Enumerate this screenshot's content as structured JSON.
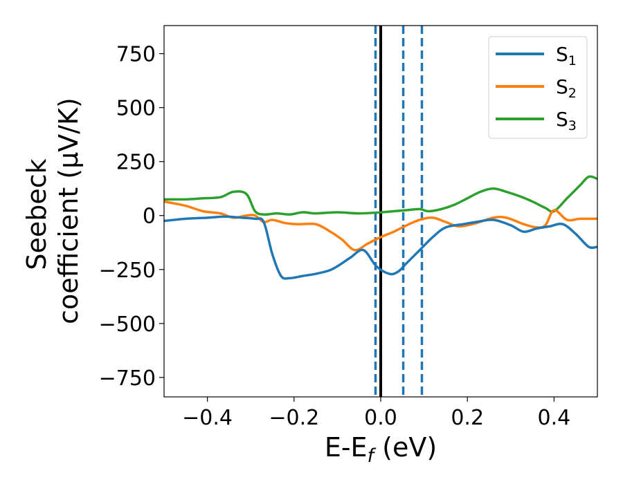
{
  "chart_data": {
    "type": "line",
    "xlabel_main": "E-E",
    "xlabel_sub": "f",
    "xlabel_unit": " (eV)",
    "ylabel_line1": "Seebeck",
    "ylabel_line2": "coefficient  (μV/K)",
    "xlim": [
      -0.5,
      0.5
    ],
    "ylim": [
      -840,
      880
    ],
    "xticks": [
      -0.4,
      -0.2,
      0.0,
      0.2,
      0.4
    ],
    "xtick_labels": [
      "−0.4",
      "−0.2",
      "0.0",
      "0.2",
      "0.4"
    ],
    "yticks": [
      750,
      500,
      250,
      0,
      -250,
      -500,
      -750
    ],
    "ytick_labels": [
      "750",
      "500",
      "250",
      "0",
      "−250",
      "−500",
      "−750"
    ],
    "grid": false,
    "legend_position": "top-right",
    "vlines": [
      {
        "x": 0.0,
        "style": "solid",
        "color": "#000000"
      },
      {
        "x": -0.012,
        "style": "dashed",
        "color": "#1f77b4"
      },
      {
        "x": 0.052,
        "style": "dashed",
        "color": "#1f77b4"
      },
      {
        "x": 0.095,
        "style": "dashed",
        "color": "#1f77b4"
      }
    ],
    "series": [
      {
        "name": "S",
        "sub": "1",
        "color": "#1f77b4",
        "x": [
          -0.5,
          -0.45,
          -0.4,
          -0.36,
          -0.32,
          -0.29,
          -0.27,
          -0.25,
          -0.23,
          -0.21,
          -0.18,
          -0.15,
          -0.12,
          -0.1,
          -0.07,
          -0.04,
          -0.01,
          0.02,
          0.04,
          0.06,
          0.09,
          0.12,
          0.15,
          0.19,
          0.22,
          0.26,
          0.3,
          0.33,
          0.36,
          0.39,
          0.42,
          0.45,
          0.48,
          0.5
        ],
        "y": [
          -25,
          -15,
          -10,
          -5,
          -10,
          -15,
          -30,
          -180,
          -280,
          -290,
          -280,
          -270,
          -255,
          -235,
          -195,
          -160,
          -235,
          -270,
          -260,
          -220,
          -160,
          -100,
          -55,
          -40,
          -30,
          -20,
          -45,
          -75,
          -60,
          -50,
          -40,
          -85,
          -145,
          -145
        ]
      },
      {
        "name": "S",
        "sub": "2",
        "color": "#ff7f0e",
        "x": [
          -0.5,
          -0.45,
          -0.41,
          -0.37,
          -0.34,
          -0.31,
          -0.29,
          -0.27,
          -0.25,
          -0.22,
          -0.19,
          -0.15,
          -0.12,
          -0.09,
          -0.06,
          -0.03,
          0.0,
          0.03,
          0.06,
          0.09,
          0.12,
          0.15,
          0.18,
          0.22,
          0.26,
          0.29,
          0.33,
          0.36,
          0.38,
          0.4,
          0.43,
          0.46,
          0.5
        ],
        "y": [
          65,
          45,
          20,
          10,
          -10,
          0,
          0,
          -30,
          -20,
          -35,
          -40,
          -40,
          -70,
          -110,
          -160,
          -130,
          -100,
          -75,
          -45,
          -20,
          -10,
          -30,
          -50,
          -35,
          -10,
          -10,
          -40,
          -55,
          -45,
          25,
          -20,
          -15,
          -15
        ]
      },
      {
        "name": "S",
        "sub": "3",
        "color": "#2ca02c",
        "x": [
          -0.5,
          -0.45,
          -0.41,
          -0.37,
          -0.34,
          -0.31,
          -0.29,
          -0.27,
          -0.24,
          -0.21,
          -0.18,
          -0.15,
          -0.1,
          -0.05,
          0.0,
          0.03,
          0.06,
          0.09,
          0.11,
          0.14,
          0.17,
          0.2,
          0.23,
          0.26,
          0.29,
          0.32,
          0.35,
          0.38,
          0.4,
          0.43,
          0.46,
          0.48,
          0.5
        ],
        "y": [
          75,
          75,
          80,
          85,
          110,
          100,
          20,
          5,
          10,
          5,
          15,
          10,
          15,
          10,
          15,
          20,
          25,
          30,
          20,
          30,
          50,
          80,
          110,
          125,
          110,
          90,
          65,
          35,
          20,
          80,
          140,
          180,
          170
        ]
      }
    ]
  }
}
